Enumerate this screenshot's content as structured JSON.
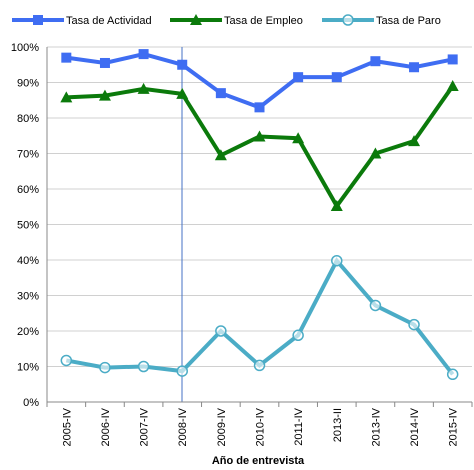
{
  "chart_data": {
    "type": "line",
    "x_label": "Año de entrevista",
    "categories": [
      "2005-IV",
      "2006-IV",
      "2007-IV",
      "2008-IV",
      "2009-IV",
      "2010-IV",
      "2011-IV",
      "2013-II",
      "2013-IV",
      "2014-IV",
      "2015-IV"
    ],
    "series": [
      {
        "name": "Tasa de Actividad",
        "color": "#3f6df2",
        "marker": "square",
        "values": [
          97,
          95.5,
          98,
          95,
          87,
          83,
          91.5,
          91.5,
          96,
          94.3,
          96.5
        ]
      },
      {
        "name": "Tasa de Empleo",
        "color": "#0b7a0b",
        "marker": "triangle",
        "values": [
          85.8,
          86.3,
          88.2,
          86.8,
          69.5,
          74.8,
          74.3,
          55.2,
          70,
          73.5,
          89
        ]
      },
      {
        "name": "Tasa de Paro",
        "color": "#4bacc6",
        "marker": "circle",
        "values": [
          11.7,
          9.7,
          10,
          8.7,
          20,
          10.3,
          18.8,
          39.8,
          27.2,
          21.8,
          7.8
        ]
      }
    ],
    "ylim": [
      0,
      100
    ],
    "yticks": [
      {
        "value": 0,
        "label": "0%"
      },
      {
        "value": 10,
        "label": "10%"
      },
      {
        "value": 20,
        "label": "20%"
      },
      {
        "value": 30,
        "label": "30%"
      },
      {
        "value": 40,
        "label": "40%"
      },
      {
        "value": 50,
        "label": "50%"
      },
      {
        "value": 60,
        "label": "60%"
      },
      {
        "value": 70,
        "label": "70%"
      },
      {
        "value": 80,
        "label": "80%"
      },
      {
        "value": 90,
        "label": "90%"
      },
      {
        "value": 100,
        "label": "100%"
      }
    ],
    "grid": true,
    "legend": "top"
  }
}
